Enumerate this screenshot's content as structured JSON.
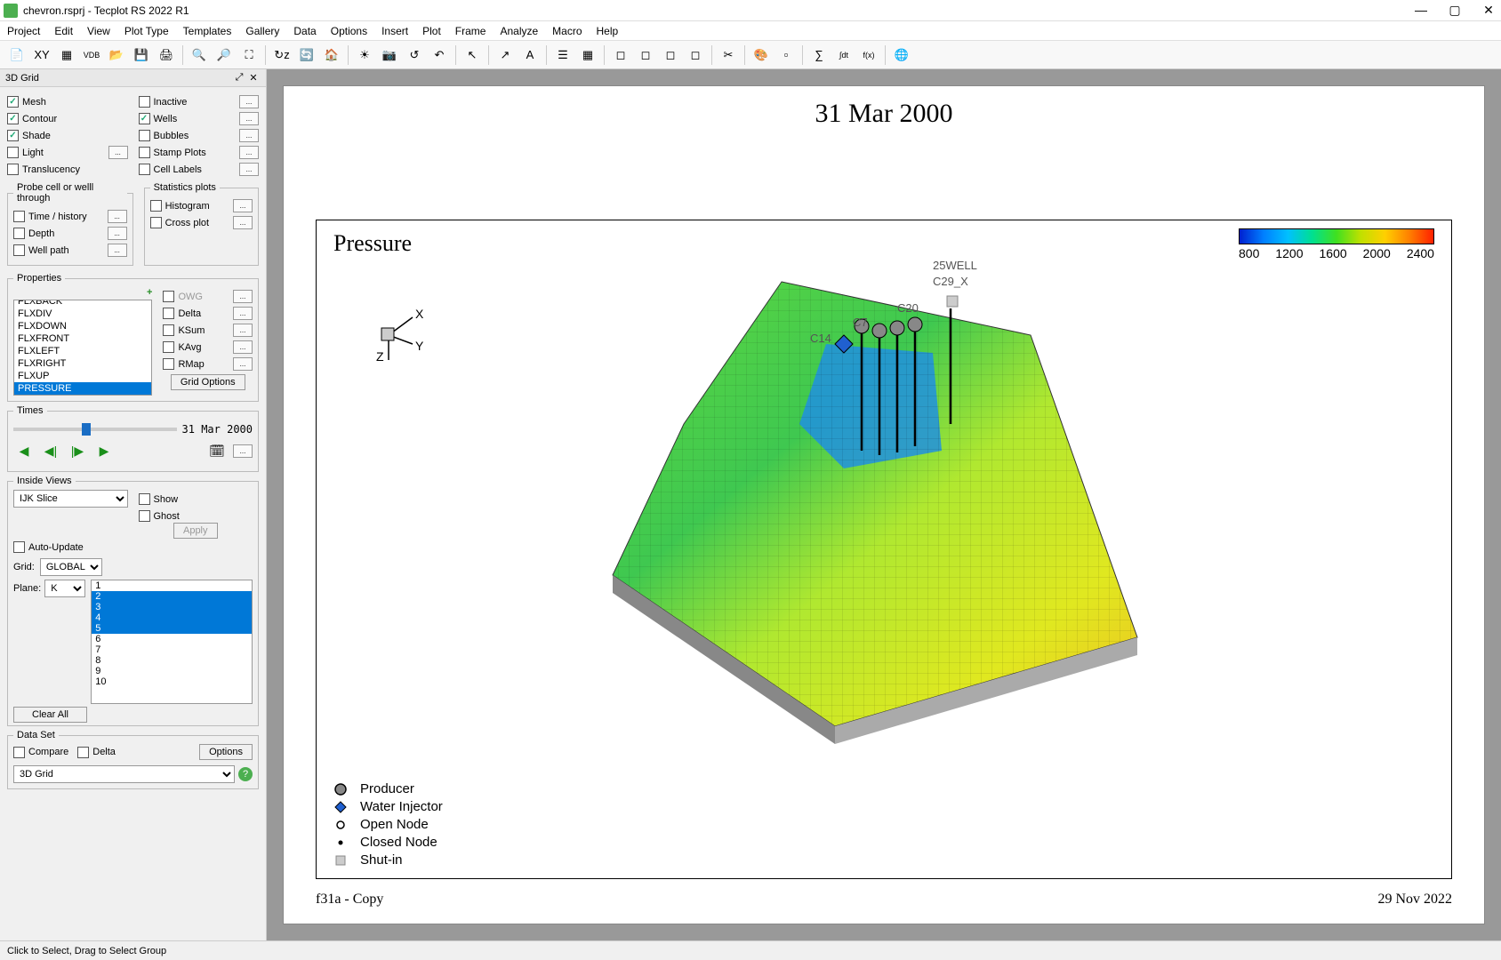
{
  "window": {
    "title": "chevron.rsprj - Tecplot RS 2022 R1"
  },
  "menu": [
    "Project",
    "Edit",
    "View",
    "Plot Type",
    "Templates",
    "Gallery",
    "Data",
    "Options",
    "Insert",
    "Plot",
    "Frame",
    "Analyze",
    "Macro",
    "Help"
  ],
  "toolbar_icons": [
    "new",
    "open-xy",
    "open-grid",
    "open-vdb",
    "open2",
    "save",
    "print",
    "|",
    "zoom-in",
    "zoom-out",
    "fit",
    "|",
    "rotate-z",
    "rotate",
    "home",
    "|",
    "sun",
    "camera",
    "reset",
    "undo",
    "|",
    "cursor",
    "|",
    "pick",
    "text",
    "|",
    "legend",
    "grid-toggle",
    "|",
    "panel1",
    "panel2",
    "panel3",
    "panel4",
    "|",
    "cut-plane",
    "|",
    "palette",
    "unknown",
    "|",
    "calc",
    "fdt",
    "fx",
    "|",
    "globe"
  ],
  "sidebar": {
    "panel_title": "3D Grid",
    "display_left": [
      {
        "label": "Mesh",
        "checked": true,
        "dots": false
      },
      {
        "label": "Contour",
        "checked": true,
        "dots": false
      },
      {
        "label": "Shade",
        "checked": true,
        "dots": false
      },
      {
        "label": "Light",
        "checked": false,
        "dots": true
      },
      {
        "label": "Translucency",
        "checked": false,
        "dots": false
      }
    ],
    "display_right": [
      {
        "label": "Inactive",
        "checked": false,
        "dots": true
      },
      {
        "label": "Wells",
        "checked": true,
        "dots": true
      },
      {
        "label": "Bubbles",
        "checked": false,
        "dots": true
      },
      {
        "label": "Stamp Plots",
        "checked": false,
        "dots": true
      },
      {
        "label": "Cell Labels",
        "checked": false,
        "dots": true
      }
    ],
    "probe": {
      "title": "Probe cell or welll through",
      "items": [
        {
          "label": "Time / history",
          "checked": false
        },
        {
          "label": "Depth",
          "checked": false
        },
        {
          "label": "Well path",
          "checked": false
        }
      ]
    },
    "stats": {
      "title": "Statistics plots",
      "items": [
        {
          "label": "Histogram",
          "checked": false,
          "dots": true
        },
        {
          "label": "Cross plot",
          "checked": false,
          "dots": true
        }
      ]
    },
    "properties": {
      "title": "Properties",
      "add_label": "+",
      "owg_label": "OWG",
      "list": [
        "FLXBACK",
        "FLXDIV",
        "FLXDOWN",
        "FLXFRONT",
        "FLXLEFT",
        "FLXRIGHT",
        "FLXUP",
        "PRESSURE"
      ],
      "selected": "PRESSURE",
      "side_checks": [
        {
          "label": "Delta",
          "checked": false,
          "dots": true
        },
        {
          "label": "KSum",
          "checked": false,
          "dots": true
        },
        {
          "label": "KAvg",
          "checked": false,
          "dots": true
        },
        {
          "label": "RMap",
          "checked": false,
          "dots": true
        }
      ],
      "grid_options_btn": "Grid Options"
    },
    "times": {
      "title": "Times",
      "current": "31 Mar 2000",
      "slider_pos_pct": 42
    },
    "inside_views": {
      "title": "Inside Views",
      "select": "IJK Slice",
      "show": {
        "label": "Show",
        "checked": false
      },
      "ghost": {
        "label": "Ghost",
        "checked": false
      },
      "apply": "Apply",
      "auto_update": {
        "label": "Auto-Update",
        "checked": false
      },
      "grid_label": "Grid:",
      "grid_value": "GLOBAL",
      "plane_label": "Plane:",
      "plane_axis": "K",
      "plane_list": [
        "1",
        "2",
        "3",
        "4",
        "5",
        "6",
        "7",
        "8",
        "9",
        "10"
      ],
      "plane_selected": [
        "2",
        "3",
        "4",
        "5"
      ],
      "clear_all": "Clear All"
    },
    "dataset": {
      "title": "Data Set",
      "compare": {
        "label": "Compare",
        "checked": false
      },
      "delta": {
        "label": "Delta",
        "checked": false
      },
      "options": "Options",
      "select": "3D Grid"
    }
  },
  "plot": {
    "title": "31 Mar 2000",
    "variable": "Pressure",
    "colorbar": {
      "ticks": [
        "800",
        "1200",
        "1600",
        "2000",
        "2400"
      ],
      "gradient": [
        "#0020d0",
        "#0080ff",
        "#00c0ff",
        "#00e090",
        "#40e020",
        "#c0e000",
        "#ffd000",
        "#ff8000",
        "#ff2000"
      ]
    },
    "axes": [
      "X",
      "Y",
      "Z"
    ],
    "wells": [
      "25WELL",
      "C29_X",
      "C20",
      "C7",
      "C14"
    ],
    "legend": [
      {
        "sym": "producer",
        "label": "Producer"
      },
      {
        "sym": "water-inj",
        "label": "Water Injector"
      },
      {
        "sym": "open-node",
        "label": "Open Node"
      },
      {
        "sym": "closed-node",
        "label": "Closed Node"
      },
      {
        "sym": "shut-in",
        "label": "Shut-in"
      }
    ],
    "footer_left": "f31a - Copy",
    "footer_right": "29 Nov 2022"
  },
  "statusbar": "Click to Select, Drag to Select Group"
}
